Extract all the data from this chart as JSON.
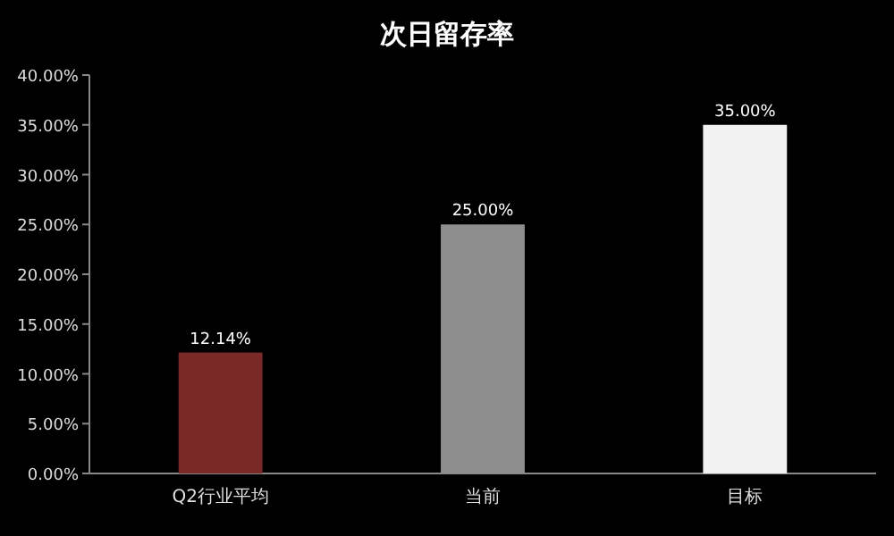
{
  "chart_data": {
    "type": "bar",
    "title": "次日留存率",
    "categories": [
      "Q2行业平均",
      "当前",
      "目标"
    ],
    "values": [
      12.14,
      25.0,
      35.0
    ],
    "colors": [
      "#7a2a26",
      "#8e8e8e",
      "#f2f2f2"
    ],
    "value_labels": [
      "12.14%",
      "25.00%",
      "35.00%"
    ],
    "ylim": [
      0,
      40
    ],
    "yticks": [
      {
        "value": 0,
        "label": "0.00%"
      },
      {
        "value": 5,
        "label": "5.00%"
      },
      {
        "value": 10,
        "label": "10.00%"
      },
      {
        "value": 15,
        "label": "15.00%"
      },
      {
        "value": 20,
        "label": "20.00%"
      },
      {
        "value": 25,
        "label": "25.00%"
      },
      {
        "value": 30,
        "label": "30.00%"
      },
      {
        "value": 35,
        "label": "35.00%"
      },
      {
        "value": 40,
        "label": "40.00%"
      }
    ],
    "grid": false
  }
}
